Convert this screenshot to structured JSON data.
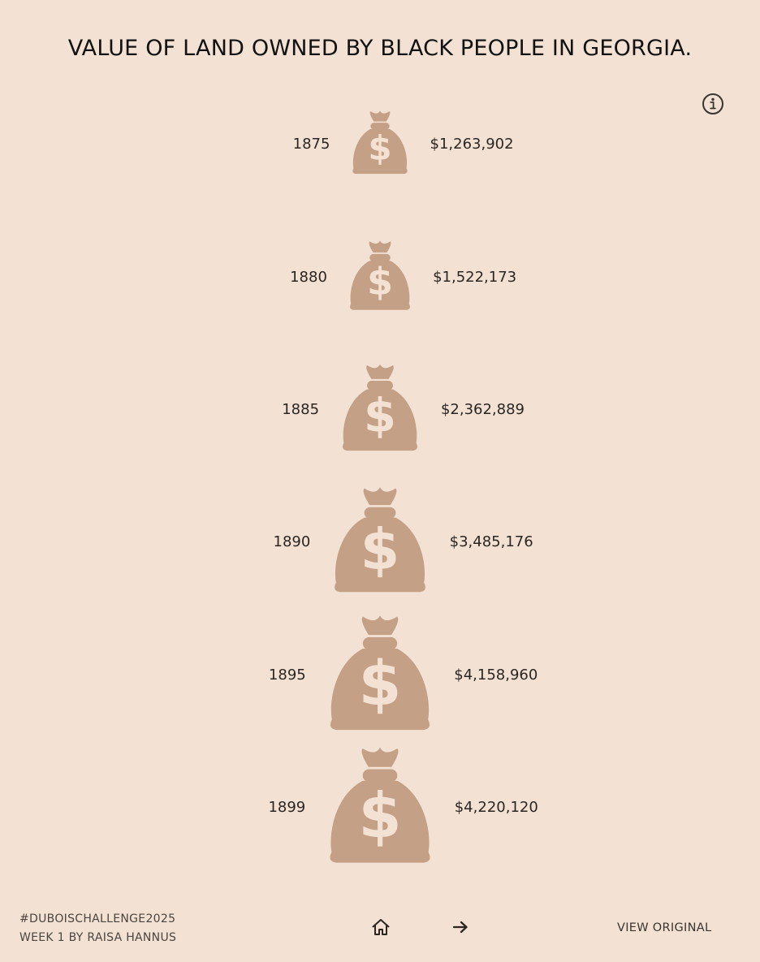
{
  "title": "VALUE OF LAND OWNED BY BLACK PEOPLE IN GEORGIA.",
  "icons": {
    "info": "info-icon",
    "mark": "money-bag-icon",
    "home": "home-icon",
    "next": "arrow-right-icon"
  },
  "colors": {
    "background": "#f3e2d3",
    "bag": "#c4a086",
    "bag_symbol": "#f3e2d3",
    "text": "#2b2622"
  },
  "footer": {
    "hashtag": "#DUBOISCHALLENGE2025",
    "credit": "WEEK 1 BY RAISA HANNUS",
    "view_original": "VIEW ORIGINAL"
  },
  "chart_data": {
    "type": "proportional-symbol",
    "symbol": "money-bag",
    "title": "VALUE OF LAND OWNED BY BLACK PEOPLE IN GEORGIA.",
    "categories": [
      "1875",
      "1880",
      "1885",
      "1890",
      "1895",
      "1899"
    ],
    "values": [
      1263902,
      1522173,
      2362889,
      3485176,
      4158960,
      4220120
    ],
    "value_labels": [
      "$1,263,902",
      "$1,522,173",
      "$2,362,889",
      "$3,485,176",
      "$4,158,960",
      "$4,220,120"
    ],
    "xlabel": "",
    "ylabel": "",
    "legend": "none",
    "grid": false
  }
}
